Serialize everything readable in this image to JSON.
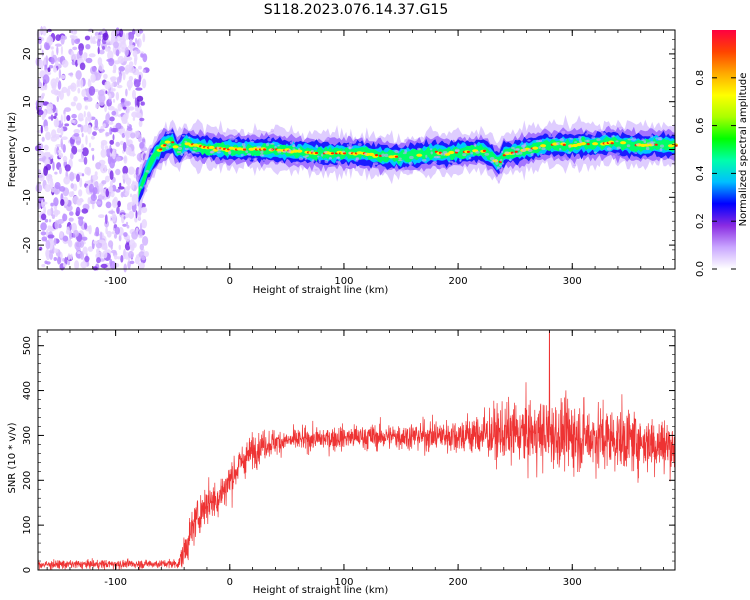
{
  "figure_title": "S118.2023.076.14.37.G15",
  "chart_data": [
    {
      "type": "heatmap",
      "xlabel": "Height of straight line (km)",
      "ylabel": "Frequency (Hz)",
      "xlim": [
        -168,
        390
      ],
      "ylim": [
        -25,
        25
      ],
      "x_ticks": [
        -100,
        0,
        100,
        200,
        300
      ],
      "y_ticks": [
        -20,
        -10,
        0,
        10,
        20
      ],
      "colorbar": {
        "label": "Normalized spectral amplitude",
        "range": [
          0,
          1
        ],
        "ticks": [
          "0.0",
          "0.2",
          "0.4",
          "0.6",
          "0.8"
        ],
        "tick_values": [
          0.0,
          0.2,
          0.4,
          0.6,
          0.8
        ],
        "colors": [
          "#ffffff",
          "#c9a6ff",
          "#8a2be2",
          "#0000ff",
          "#00bfff",
          "#00ffaa",
          "#00ff00",
          "#aaff00",
          "#ffff00",
          "#ffaa00",
          "#ff4400",
          "#ff0040"
        ]
      },
      "noise_region_x": [
        -168,
        -73
      ],
      "ridge": {
        "x": [
          -80,
          -75,
          -70,
          -65,
          -60,
          -55,
          -50,
          -45,
          -40,
          -35,
          -30,
          -20,
          -10,
          0,
          20,
          40,
          60,
          80,
          100,
          120,
          130,
          140,
          150,
          160,
          170,
          180,
          190,
          200,
          210,
          220,
          230,
          235,
          240,
          250,
          260,
          270,
          280,
          290,
          300,
          310,
          320,
          330,
          340,
          350,
          360,
          370,
          380,
          390
        ],
        "freq": [
          -9,
          -6,
          -3,
          -1,
          0.5,
          1.5,
          1.5,
          -0.5,
          1.5,
          1.2,
          0.8,
          0.4,
          0.2,
          0,
          0,
          0,
          -0.5,
          -0.8,
          -0.8,
          -0.8,
          -1.3,
          -1.5,
          -1.5,
          -1.2,
          -1.0,
          -0.5,
          -1.0,
          -0.5,
          -0.5,
          0,
          -1.5,
          -3,
          -1.0,
          -0.5,
          0,
          0.5,
          1,
          1,
          0.8,
          1.2,
          1,
          1.4,
          1.2,
          1,
          0.8,
          1,
          1,
          0.8
        ]
      }
    },
    {
      "type": "line",
      "xlabel": "Height of straight line (km)",
      "ylabel": "SNR (10 * v/v)",
      "xlim": [
        -168,
        390
      ],
      "ylim": [
        0,
        535
      ],
      "x_ticks": [
        -100,
        0,
        100,
        200,
        300
      ],
      "y_ticks": [
        0,
        100,
        200,
        300,
        400,
        500
      ],
      "color": "#ee3333",
      "trend": {
        "x": [
          -168,
          -45,
          -40,
          -30,
          -20,
          -10,
          0,
          10,
          20,
          30,
          40,
          60,
          100,
          150,
          200,
          250,
          300,
          350,
          390
        ],
        "snr": [
          12,
          14,
          40,
          110,
          150,
          160,
          200,
          240,
          265,
          280,
          285,
          290,
          295,
          298,
          300,
          305,
          300,
          290,
          275
        ]
      },
      "noise_amplitude": {
        "x": [
          -168,
          -45,
          -40,
          0,
          50,
          150,
          200,
          250,
          300,
          350,
          390
        ],
        "amp": [
          10,
          10,
          40,
          45,
          25,
          30,
          40,
          70,
          80,
          70,
          60
        ]
      },
      "peak": {
        "x": 280,
        "snr": 535
      }
    }
  ]
}
